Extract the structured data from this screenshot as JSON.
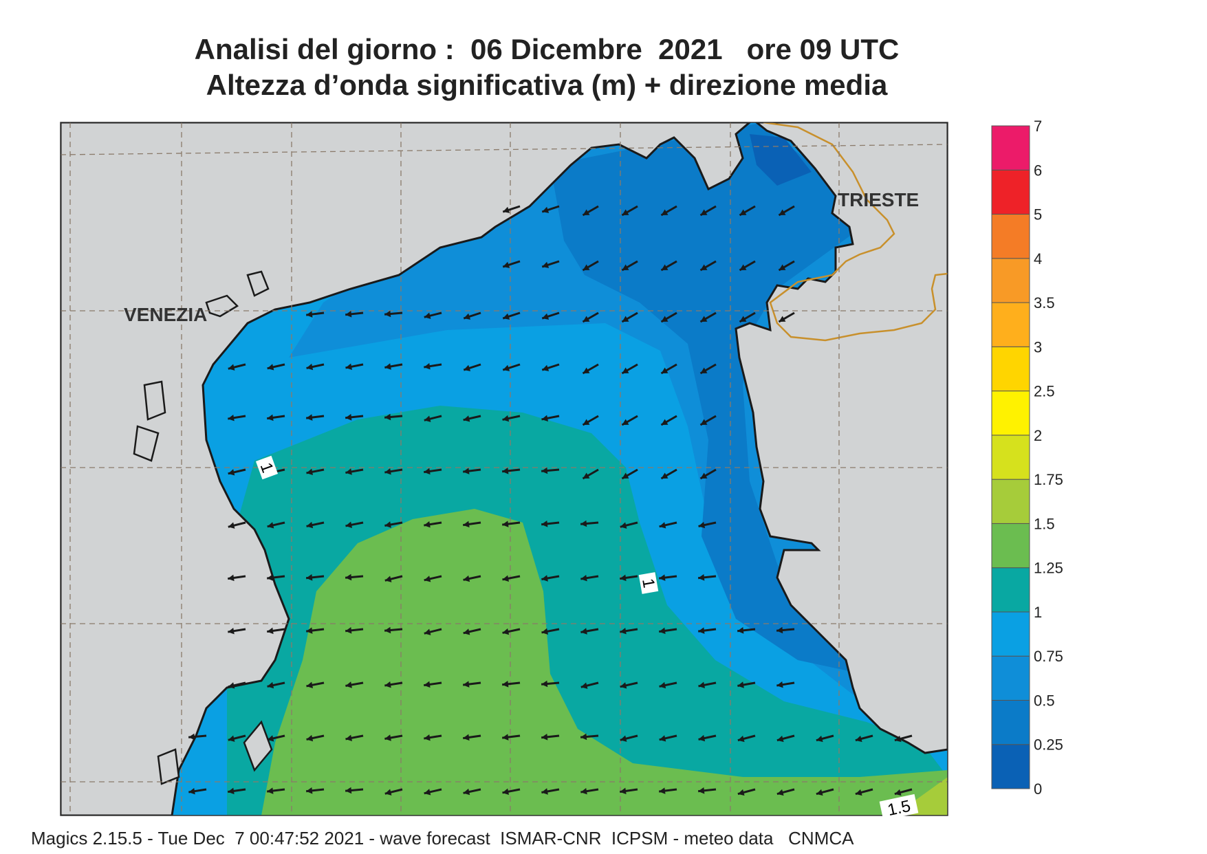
{
  "title_line1": "Analisi del giorno :  06 Dicembre  2021   ore 09 UTC",
  "title_line2": "Altezza d’onda significativa (m) + direzione media",
  "footer": "Magics 2.15.5 - Tue Dec  7 00:47:52 2021 - wave forecast  ISMAR-CNR  ICPSM - meteo data   CNMCA",
  "cities": [
    {
      "name": "VENEZIA"
    },
    {
      "name": "TRIESTE"
    }
  ],
  "contour_labels": [
    "1",
    "1",
    "1.5"
  ],
  "legend": {
    "ticks": [
      "0",
      "0.25",
      "0.5",
      "0.75",
      "1",
      "1.25",
      "1.5",
      "1.75",
      "2",
      "2.5",
      "3",
      "3.5",
      "4",
      "5",
      "6",
      "7"
    ],
    "colors": [
      "#0a61b5",
      "#0b7bc8",
      "#0f8ed8",
      "#0aa0e3",
      "#09a8a2",
      "#6bbd50",
      "#a6cc3a",
      "#d6e11d",
      "#fff200",
      "#ffd500",
      "#ffaf1c",
      "#f89a26",
      "#f47c26",
      "#ee2228",
      "#ec1b69"
    ]
  },
  "colors": {
    "land": "#d1d3d4",
    "coast": "#1a1a1a",
    "border": "#c8902c",
    "grid": "#8a7a6a",
    "arrow": "#1a1a1a"
  }
}
